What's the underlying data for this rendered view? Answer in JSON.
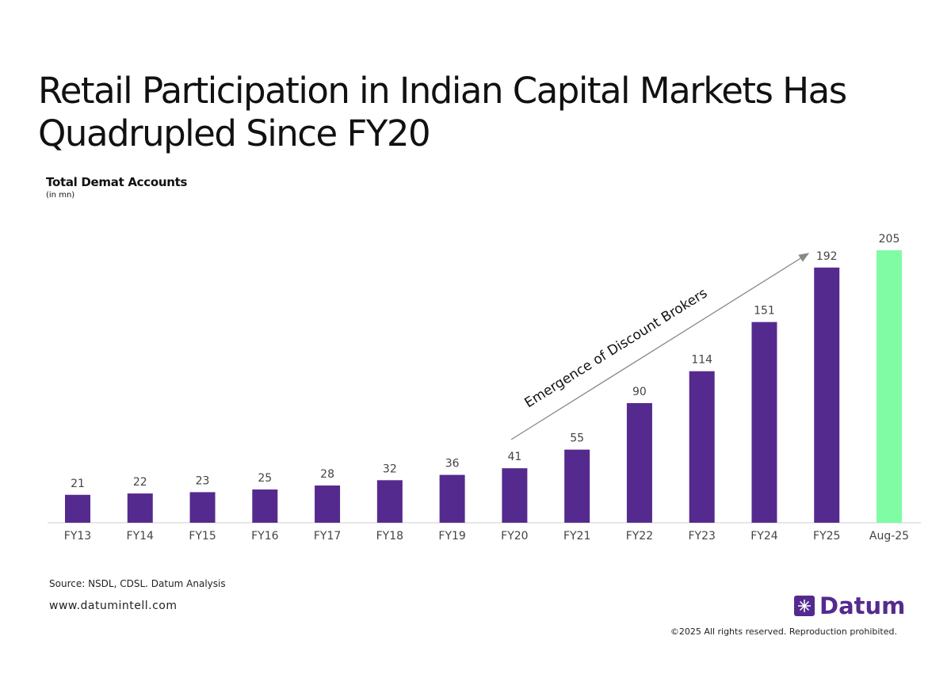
{
  "chart_data": {
    "type": "bar",
    "title": "Retail Participation in Indian Capital Markets Has Quadrupled Since FY20",
    "subtitle": "Total Demat Accounts",
    "unit_note": "(in mn)",
    "annotation": "Emergence of Discount Brokers",
    "categories": [
      "FY13",
      "FY14",
      "FY15",
      "FY16",
      "FY17",
      "FY18",
      "FY19",
      "FY20",
      "FY21",
      "FY22",
      "FY23",
      "FY24",
      "FY25",
      "Aug-25"
    ],
    "values": [
      21,
      22,
      23,
      25,
      28,
      32,
      36,
      41,
      55,
      90,
      114,
      151,
      192,
      205
    ],
    "colors": [
      "#552a8f",
      "#552a8f",
      "#552a8f",
      "#552a8f",
      "#552a8f",
      "#552a8f",
      "#552a8f",
      "#552a8f",
      "#552a8f",
      "#552a8f",
      "#552a8f",
      "#552a8f",
      "#552a8f",
      "#80fca4"
    ],
    "source": "Source: NSDL, CDSL. Datum Analysis"
  },
  "footer": {
    "website": "www.datumintell.com",
    "brand": "Datum",
    "copyright": "©2025 All rights reserved. Reproduction prohibited."
  }
}
